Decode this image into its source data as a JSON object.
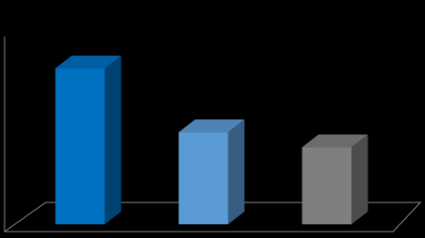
{
  "chart_data": {
    "type": "bar3d",
    "categories": [
      null,
      null,
      null
    ],
    "values": [
      83,
      49,
      41
    ],
    "colors": [
      "#0070c0",
      "#5b9bd5",
      "#7f7f7f"
    ],
    "ylim": [
      0,
      100
    ]
  }
}
